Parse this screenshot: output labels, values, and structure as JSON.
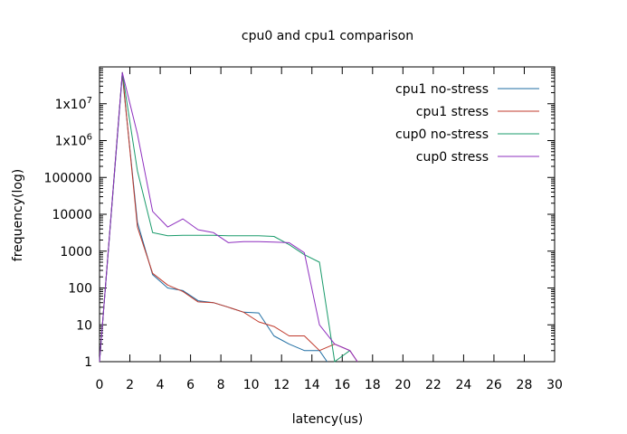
{
  "chart_data": {
    "type": "line",
    "title": "cpu0 and cpu1 comparison",
    "xlabel": "latency(us)",
    "ylabel": "frequency(log)",
    "xlim": [
      0,
      30
    ],
    "ylim": [
      1,
      100000000
    ],
    "yscale": "log",
    "grid": false,
    "legend_position": "top-right",
    "x_ticks": [
      0,
      2,
      4,
      6,
      8,
      10,
      12,
      14,
      16,
      18,
      20,
      22,
      24,
      26,
      28,
      30
    ],
    "y_ticks": [
      {
        "value": 1,
        "label": "1"
      },
      {
        "value": 10,
        "label": "10"
      },
      {
        "value": 100,
        "label": "100"
      },
      {
        "value": 1000,
        "label": "1000"
      },
      {
        "value": 10000,
        "label": "10000"
      },
      {
        "value": 100000,
        "label": "100000"
      },
      {
        "value": 1000000,
        "label": "1x10^6"
      },
      {
        "value": 10000000,
        "label": "1x10^7"
      }
    ],
    "series": [
      {
        "name": "cpu1 no-stress",
        "color": "#1f6ea3",
        "x": [
          0,
          1.5,
          2.5,
          3.5,
          4.5,
          5.5,
          6.5,
          7.5,
          8.5,
          9.5,
          10.5,
          11.5,
          12.5,
          13.5,
          14.5,
          15
        ],
        "y": [
          1,
          60000000,
          6000,
          230,
          100,
          85,
          45,
          40,
          30,
          22,
          21,
          5,
          3,
          2,
          2,
          1
        ]
      },
      {
        "name": "cpu1 stress",
        "color": "#c0392b",
        "x": [
          0,
          1.5,
          2.5,
          3.5,
          4.5,
          5.5,
          6.5,
          7.5,
          8.5,
          9.5,
          10.5,
          11.5,
          12.5,
          13.5,
          14.5,
          15.5,
          16.5,
          17
        ],
        "y": [
          1,
          70000000,
          4500,
          250,
          120,
          80,
          42,
          40,
          30,
          22,
          12,
          9,
          5,
          5,
          2,
          3,
          2,
          1
        ]
      },
      {
        "name": "cup0 no-stress",
        "color": "#1a9b6b",
        "x": [
          0,
          1.5,
          2.5,
          3.5,
          4.5,
          5.5,
          6.5,
          7.5,
          8.5,
          9.5,
          10.5,
          11.5,
          12.5,
          13.5,
          14.5,
          15.5,
          16.5
        ],
        "y": [
          1,
          70000000,
          150000,
          3200,
          2600,
          2700,
          2700,
          2700,
          2600,
          2600,
          2600,
          2500,
          1500,
          800,
          500,
          1,
          2
        ]
      },
      {
        "name": "cup0 stress",
        "color": "#8e2fbf",
        "x": [
          0,
          1.5,
          2.5,
          3.5,
          4.5,
          5.5,
          6.5,
          7.5,
          8.5,
          9.5,
          10.5,
          11.5,
          12.5,
          13.5,
          14.5,
          15.5,
          16.5,
          17
        ],
        "y": [
          1,
          70000000,
          1500000,
          12000,
          4500,
          7500,
          3800,
          3200,
          1700,
          1800,
          1800,
          1750,
          1700,
          900,
          10,
          3,
          2,
          1
        ]
      }
    ]
  }
}
